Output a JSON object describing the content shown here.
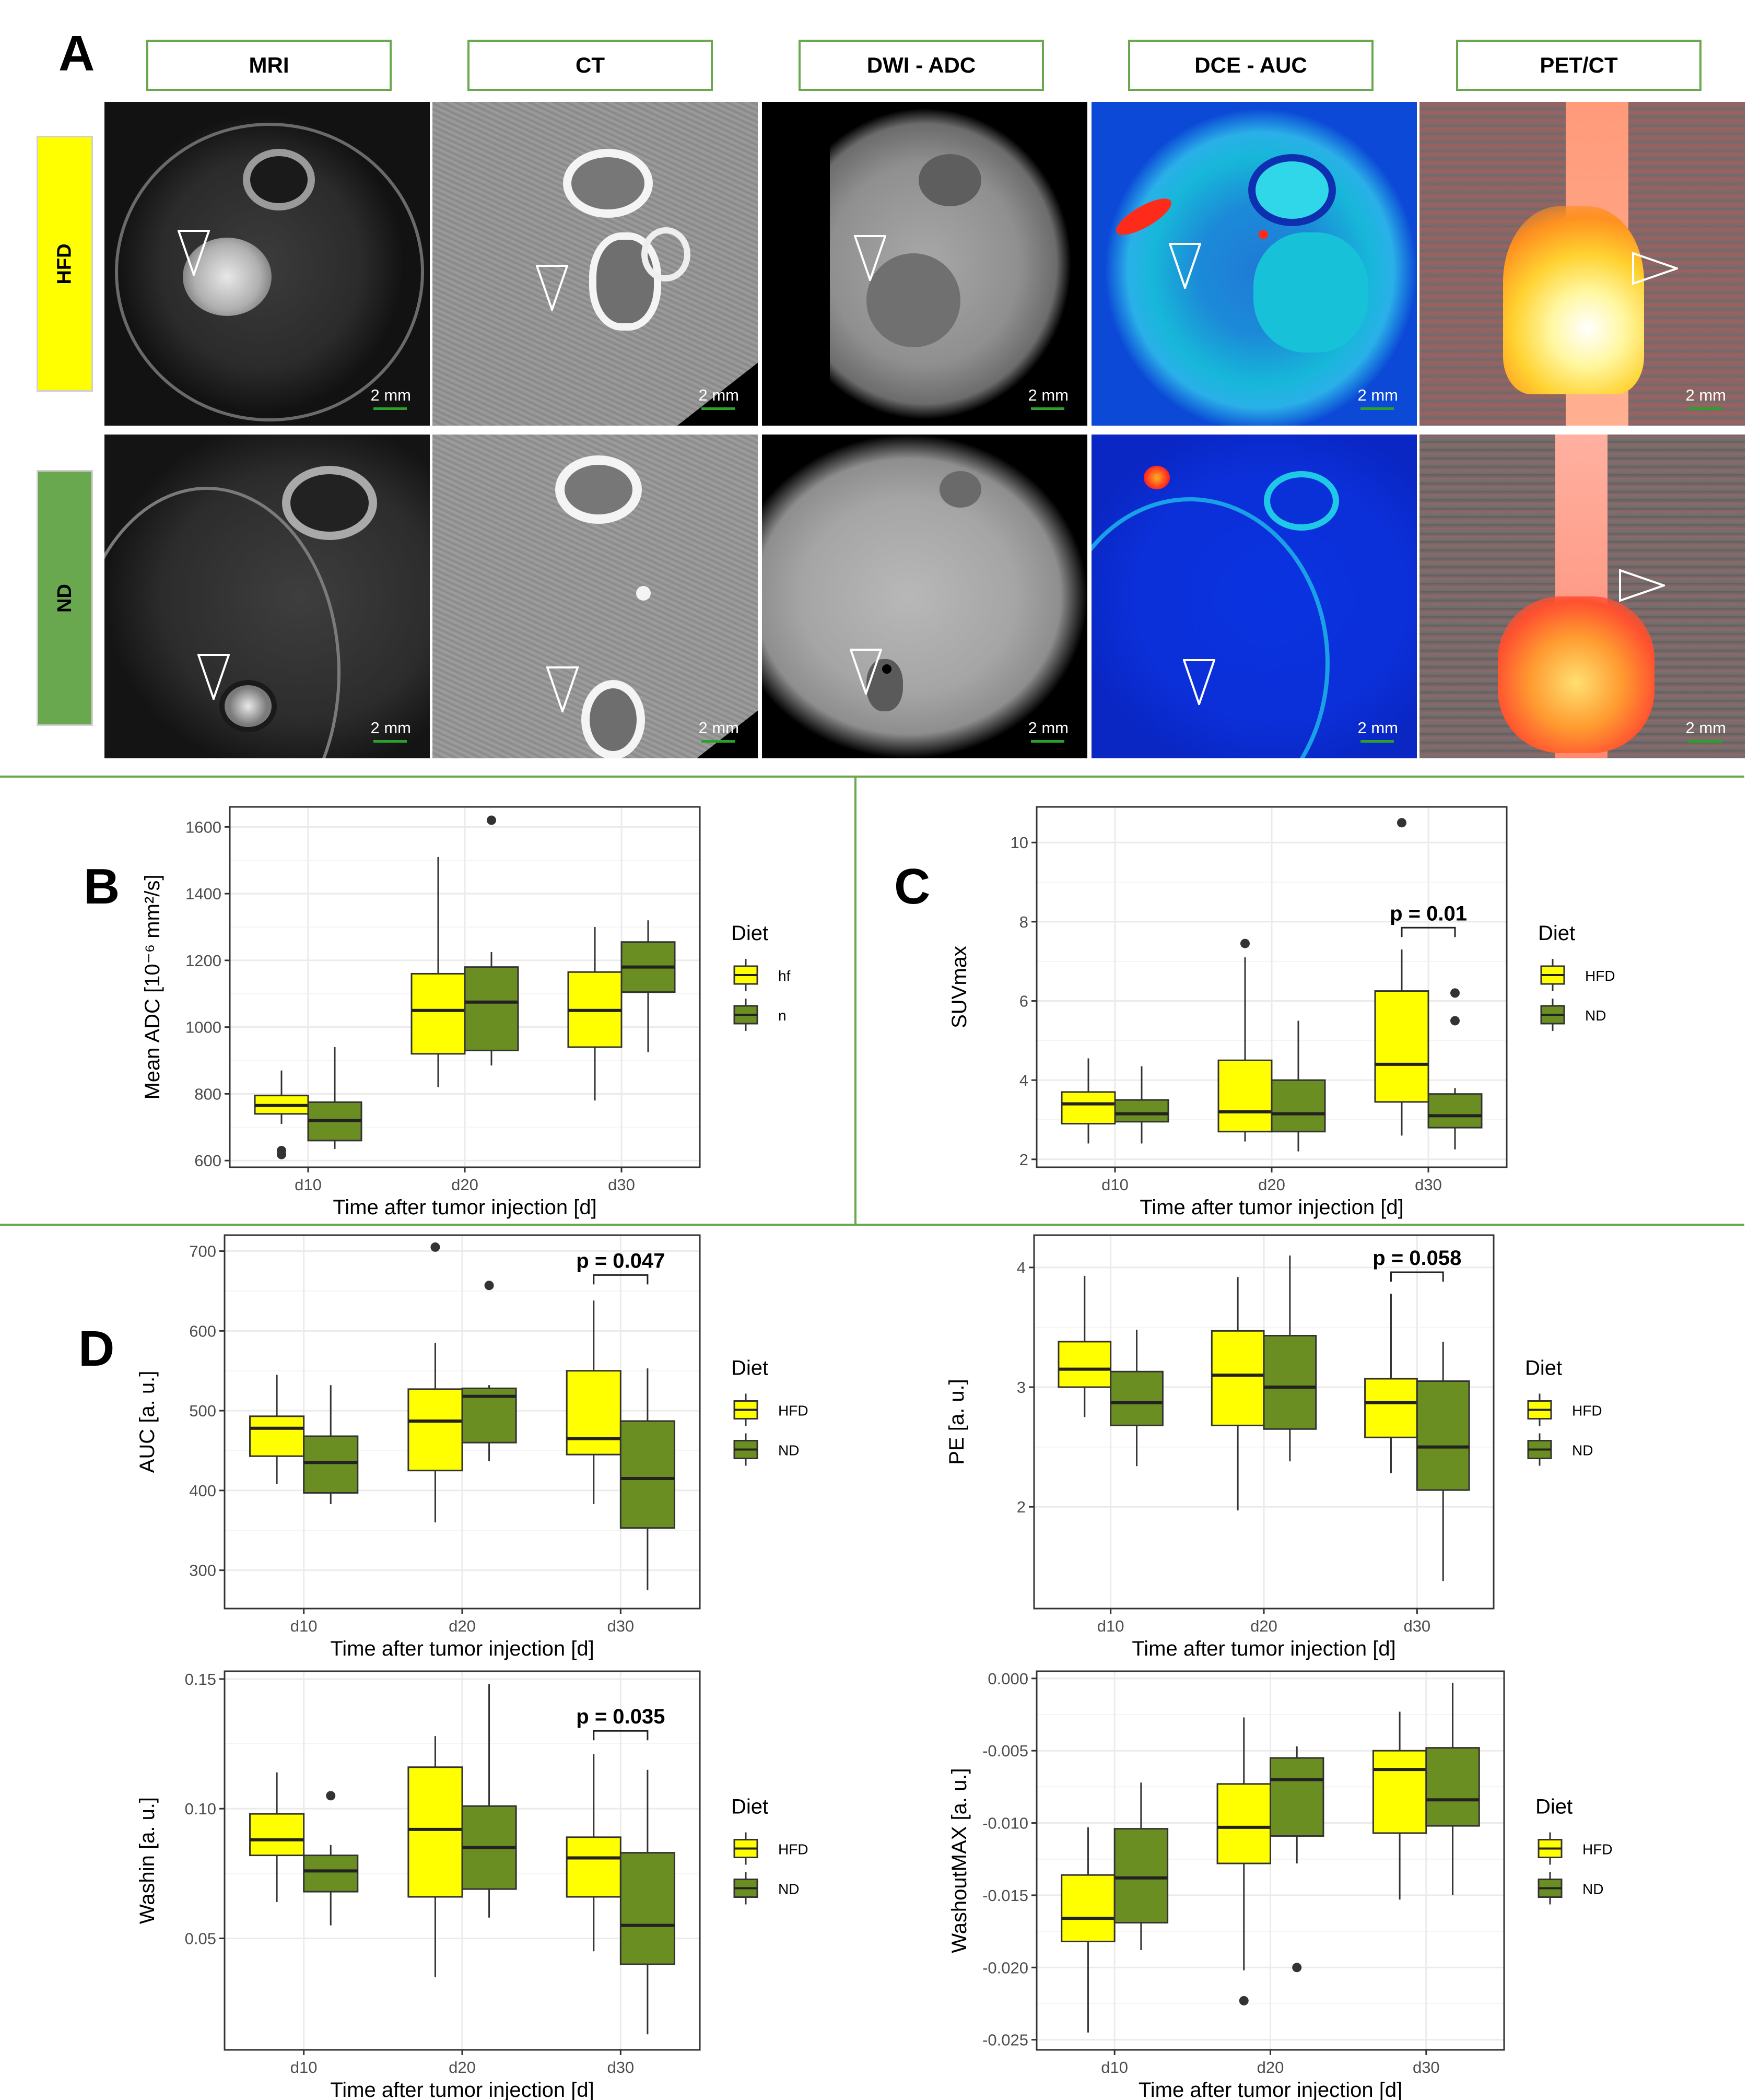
{
  "figure": {
    "panel_letters": {
      "a": "A",
      "b": "B",
      "c": "C",
      "d": "D"
    },
    "modalities": [
      "MRI",
      "CT",
      "DWI - ADC",
      "DCE - AUC",
      "PET/CT"
    ],
    "rows": [
      {
        "label": "HFD",
        "color": "#ffff00"
      },
      {
        "label": "ND",
        "color": "#6aa84f"
      }
    ],
    "scale_bar_label": "2 mm"
  },
  "colors": {
    "hfd_fill": "#ffff00",
    "nd_fill": "#6b8e23",
    "separator": "#6aa84f",
    "grid": "#ebebeb"
  },
  "chart_data": [
    {
      "id": "B",
      "type": "boxplot",
      "ylabel": "Mean ADC [10⁻⁶ mm²/s]",
      "xlabel": "Time after tumor injection [d]",
      "categories": [
        "d10",
        "d20",
        "d30"
      ],
      "ylim": [
        580,
        1660
      ],
      "yticks": [
        600,
        800,
        1000,
        1200,
        1400,
        1600
      ],
      "yticklabels": [
        "600",
        "800",
        "1000",
        "1200",
        "1400",
        "1600"
      ],
      "legend": {
        "title": "Diet",
        "entries": [
          "hf",
          "n"
        ]
      },
      "series": [
        {
          "name": "hf",
          "boxes": [
            {
              "min": 710,
              "q1": 740,
              "median": 765,
              "q3": 795,
              "max": 870,
              "outliers": [
                618,
                630
              ]
            },
            {
              "min": 820,
              "q1": 920,
              "median": 1050,
              "q3": 1160,
              "max": 1510,
              "outliers": []
            },
            {
              "min": 780,
              "q1": 940,
              "median": 1050,
              "q3": 1165,
              "max": 1300,
              "outliers": []
            }
          ]
        },
        {
          "name": "n",
          "boxes": [
            {
              "min": 635,
              "q1": 660,
              "median": 720,
              "q3": 775,
              "max": 940,
              "outliers": []
            },
            {
              "min": 885,
              "q1": 930,
              "median": 1075,
              "q3": 1180,
              "max": 1225,
              "outliers": [
                1620
              ]
            },
            {
              "min": 925,
              "q1": 1105,
              "median": 1180,
              "q3": 1255,
              "max": 1320,
              "outliers": []
            }
          ]
        }
      ],
      "annotations": []
    },
    {
      "id": "C",
      "type": "boxplot",
      "ylabel": "SUVmax",
      "xlabel": "Time after tumor injection [d]",
      "categories": [
        "d10",
        "d20",
        "d30"
      ],
      "ylim": [
        1.8,
        10.9
      ],
      "yticks": [
        2,
        4,
        6,
        8,
        10
      ],
      "yticklabels": [
        "2",
        "4",
        "6",
        "8",
        "10"
      ],
      "legend": {
        "title": "Diet",
        "entries": [
          "HFD",
          "ND"
        ]
      },
      "series": [
        {
          "name": "HFD",
          "boxes": [
            {
              "min": 2.4,
              "q1": 2.9,
              "median": 3.4,
              "q3": 3.7,
              "max": 4.55,
              "outliers": []
            },
            {
              "min": 2.45,
              "q1": 2.7,
              "median": 3.2,
              "q3": 4.5,
              "max": 7.1,
              "outliers": [
                7.45
              ]
            },
            {
              "min": 2.6,
              "q1": 3.45,
              "median": 4.4,
              "q3": 6.25,
              "max": 7.3,
              "outliers": [
                10.5
              ]
            }
          ]
        },
        {
          "name": "ND",
          "boxes": [
            {
              "min": 2.4,
              "q1": 2.95,
              "median": 3.15,
              "q3": 3.5,
              "max": 4.35,
              "outliers": []
            },
            {
              "min": 2.2,
              "q1": 2.7,
              "median": 3.15,
              "q3": 4.0,
              "max": 5.5,
              "outliers": []
            },
            {
              "min": 2.25,
              "q1": 2.8,
              "median": 3.1,
              "q3": 3.65,
              "max": 3.8,
              "outliers": [
                5.5,
                6.2
              ]
            }
          ]
        }
      ],
      "annotations": [
        {
          "category": "d30",
          "text": "p = 0.01",
          "bracket_y": 7.85
        }
      ]
    },
    {
      "id": "D-AUC",
      "type": "boxplot",
      "ylabel": "AUC [a. u.]",
      "xlabel": "Time after tumor injection [d]",
      "categories": [
        "d10",
        "d20",
        "d30"
      ],
      "ylim": [
        252,
        720
      ],
      "yticks": [
        300,
        400,
        500,
        600,
        700
      ],
      "yticklabels": [
        "300",
        "400",
        "500",
        "600",
        "700"
      ],
      "legend": {
        "title": "Diet",
        "entries": [
          "HFD",
          "ND"
        ]
      },
      "series": [
        {
          "name": "HFD",
          "boxes": [
            {
              "min": 408,
              "q1": 443,
              "median": 478,
              "q3": 493,
              "max": 545,
              "outliers": []
            },
            {
              "min": 360,
              "q1": 425,
              "median": 487,
              "q3": 527,
              "max": 585,
              "outliers": [
                705
              ]
            },
            {
              "min": 383,
              "q1": 445,
              "median": 465,
              "q3": 550,
              "max": 638,
              "outliers": []
            }
          ]
        },
        {
          "name": "ND",
          "boxes": [
            {
              "min": 383,
              "q1": 397,
              "median": 435,
              "q3": 468,
              "max": 532,
              "outliers": []
            },
            {
              "min": 437,
              "q1": 460,
              "median": 518,
              "q3": 528,
              "max": 532,
              "outliers": [
                657
              ]
            },
            {
              "min": 275,
              "q1": 353,
              "median": 415,
              "q3": 487,
              "max": 553,
              "outliers": []
            }
          ]
        }
      ],
      "annotations": [
        {
          "category": "d30",
          "text": "p = 0.047",
          "bracket_y": 670
        }
      ]
    },
    {
      "id": "D-PE",
      "type": "boxplot",
      "ylabel": "PE [a. u.]",
      "xlabel": "Time after tumor injection [d]",
      "categories": [
        "d10",
        "d20",
        "d30"
      ],
      "ylim": [
        1.15,
        4.27
      ],
      "yticks": [
        2,
        3,
        4
      ],
      "yticklabels": [
        "2",
        "3",
        "4"
      ],
      "legend": {
        "title": "Diet",
        "entries": [
          "HFD",
          "ND"
        ]
      },
      "series": [
        {
          "name": "HFD",
          "boxes": [
            {
              "min": 2.75,
              "q1": 3.0,
              "median": 3.15,
              "q3": 3.38,
              "max": 3.93,
              "outliers": []
            },
            {
              "min": 1.97,
              "q1": 2.68,
              "median": 3.1,
              "q3": 3.47,
              "max": 3.92,
              "outliers": []
            },
            {
              "min": 2.28,
              "q1": 2.58,
              "median": 2.87,
              "q3": 3.07,
              "max": 3.78,
              "outliers": []
            }
          ]
        },
        {
          "name": "ND",
          "boxes": [
            {
              "min": 2.34,
              "q1": 2.68,
              "median": 2.87,
              "q3": 3.13,
              "max": 3.48,
              "outliers": []
            },
            {
              "min": 2.38,
              "q1": 2.65,
              "median": 3.0,
              "q3": 3.43,
              "max": 4.1,
              "outliers": []
            },
            {
              "min": 1.38,
              "q1": 2.14,
              "median": 2.5,
              "q3": 3.05,
              "max": 3.38,
              "outliers": []
            }
          ]
        }
      ],
      "annotations": [
        {
          "category": "d30",
          "text": "p = 0.058",
          "bracket_y": 3.96
        }
      ]
    },
    {
      "id": "D-Washin",
      "type": "boxplot",
      "ylabel": "Washin [a. u.]",
      "xlabel": "Time after tumor injection [d]",
      "categories": [
        "d10",
        "d20",
        "d30"
      ],
      "ylim": [
        0.007,
        0.153
      ],
      "yticks": [
        0.05,
        0.1,
        0.15
      ],
      "yticklabels": [
        "0.05",
        "0.10",
        "0.15"
      ],
      "legend": {
        "title": "Diet",
        "entries": [
          "HFD",
          "ND"
        ]
      },
      "series": [
        {
          "name": "HFD",
          "boxes": [
            {
              "min": 0.064,
              "q1": 0.082,
              "median": 0.088,
              "q3": 0.098,
              "max": 0.114,
              "outliers": []
            },
            {
              "min": 0.035,
              "q1": 0.066,
              "median": 0.092,
              "q3": 0.116,
              "max": 0.128,
              "outliers": []
            },
            {
              "min": 0.045,
              "q1": 0.066,
              "median": 0.081,
              "q3": 0.089,
              "max": 0.121,
              "outliers": []
            }
          ]
        },
        {
          "name": "ND",
          "boxes": [
            {
              "min": 0.055,
              "q1": 0.068,
              "median": 0.076,
              "q3": 0.082,
              "max": 0.086,
              "outliers": [
                0.105
              ]
            },
            {
              "min": 0.058,
              "q1": 0.069,
              "median": 0.085,
              "q3": 0.101,
              "max": 0.148,
              "outliers": []
            },
            {
              "min": 0.013,
              "q1": 0.04,
              "median": 0.055,
              "q3": 0.083,
              "max": 0.115,
              "outliers": []
            }
          ]
        }
      ],
      "annotations": [
        {
          "category": "d30",
          "text": "p = 0.035",
          "bracket_y": 0.13
        }
      ]
    },
    {
      "id": "D-WashoutMAX",
      "type": "boxplot",
      "ylabel": "WashoutMAX [a. u.]",
      "xlabel": "Time after tumor injection [d]",
      "categories": [
        "d10",
        "d20",
        "d30"
      ],
      "ylim": [
        -0.0257,
        0.0005
      ],
      "yticks": [
        -0.025,
        -0.02,
        -0.015,
        -0.01,
        -0.005,
        0.0
      ],
      "yticklabels": [
        "-0.025",
        "-0.020",
        "-0.015",
        "-0.010",
        "-0.005",
        "0.000"
      ],
      "legend": {
        "title": "Diet",
        "entries": [
          "HFD",
          "ND"
        ]
      },
      "series": [
        {
          "name": "HFD",
          "boxes": [
            {
              "min": -0.0245,
              "q1": -0.0182,
              "median": -0.0166,
              "q3": -0.0136,
              "max": -0.0103,
              "outliers": []
            },
            {
              "min": -0.0202,
              "q1": -0.0128,
              "median": -0.0103,
              "q3": -0.0073,
              "max": -0.0027,
              "outliers": [
                -0.0223
              ]
            },
            {
              "min": -0.0153,
              "q1": -0.0107,
              "median": -0.0063,
              "q3": -0.005,
              "max": -0.0023,
              "outliers": []
            }
          ]
        },
        {
          "name": "ND",
          "boxes": [
            {
              "min": -0.0188,
              "q1": -0.0169,
              "median": -0.0138,
              "q3": -0.0104,
              "max": -0.0072,
              "outliers": []
            },
            {
              "min": -0.0128,
              "q1": -0.0109,
              "median": -0.007,
              "q3": -0.0055,
              "max": -0.0047,
              "outliers": [
                -0.02
              ]
            },
            {
              "min": -0.015,
              "q1": -0.0102,
              "median": -0.0084,
              "q3": -0.0048,
              "max": -0.0003,
              "outliers": []
            }
          ]
        }
      ],
      "annotations": []
    }
  ]
}
